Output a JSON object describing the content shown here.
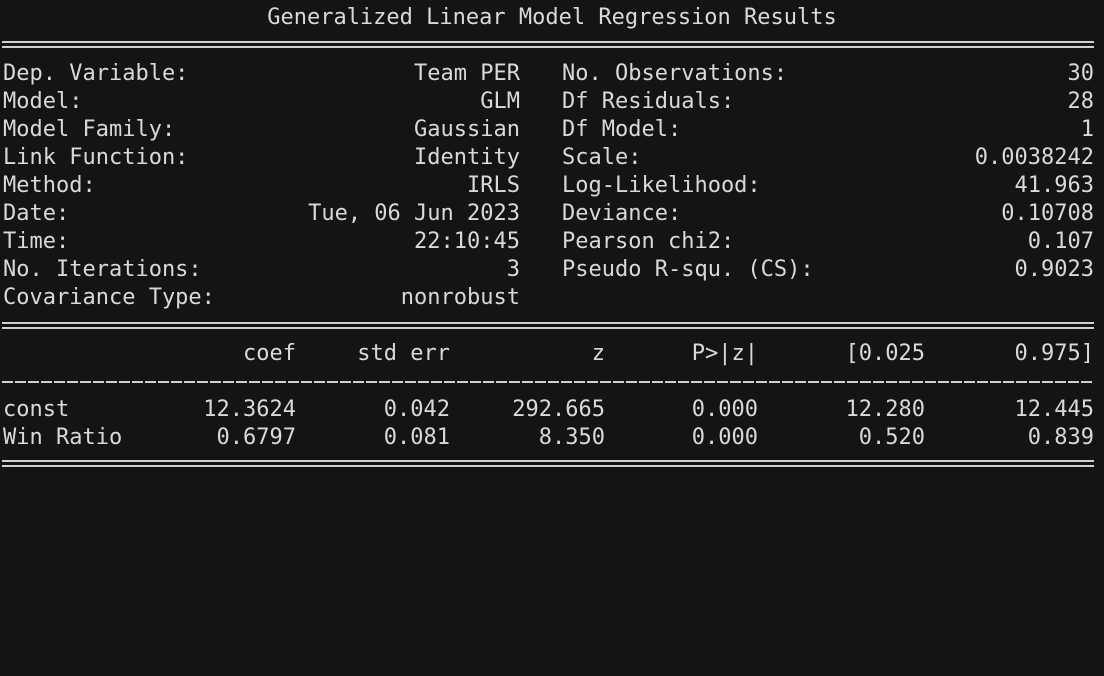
{
  "title": "Generalized Linear Model Regression Results",
  "left_rows": [
    {
      "label": "Dep. Variable:",
      "value": "Team PER"
    },
    {
      "label": "Model:",
      "value": "GLM"
    },
    {
      "label": "Model Family:",
      "value": "Gaussian"
    },
    {
      "label": "Link Function:",
      "value": "Identity"
    },
    {
      "label": "Method:",
      "value": "IRLS"
    },
    {
      "label": "Date:",
      "value": "Tue, 06 Jun 2023"
    },
    {
      "label": "Time:",
      "value": "22:10:45"
    },
    {
      "label": "No. Iterations:",
      "value": "3"
    },
    {
      "label": "Covariance Type:",
      "value": "nonrobust"
    }
  ],
  "right_rows": [
    {
      "label": "No. Observations:",
      "value": "30"
    },
    {
      "label": "Df Residuals:",
      "value": "28"
    },
    {
      "label": "Df Model:",
      "value": "1"
    },
    {
      "label": "Scale:",
      "value": "0.0038242"
    },
    {
      "label": "Log-Likelihood:",
      "value": "41.963"
    },
    {
      "label": "Deviance:",
      "value": "0.10708"
    },
    {
      "label": "Pearson chi2:",
      "value": "0.107"
    },
    {
      "label": "Pseudo R-squ. (CS):",
      "value": "0.9023"
    }
  ],
  "coef_table": {
    "headers": [
      "coef",
      "std err",
      "z",
      "P>|z|",
      "[0.025",
      "0.975]"
    ],
    "rows": [
      {
        "name": "const",
        "values": [
          "12.3624",
          "0.042",
          "292.665",
          "0.000",
          "12.280",
          "12.445"
        ]
      },
      {
        "name": "Win Ratio",
        "values": [
          "0.6797",
          "0.081",
          "8.350",
          "0.000",
          "0.520",
          "0.839"
        ]
      }
    ]
  }
}
